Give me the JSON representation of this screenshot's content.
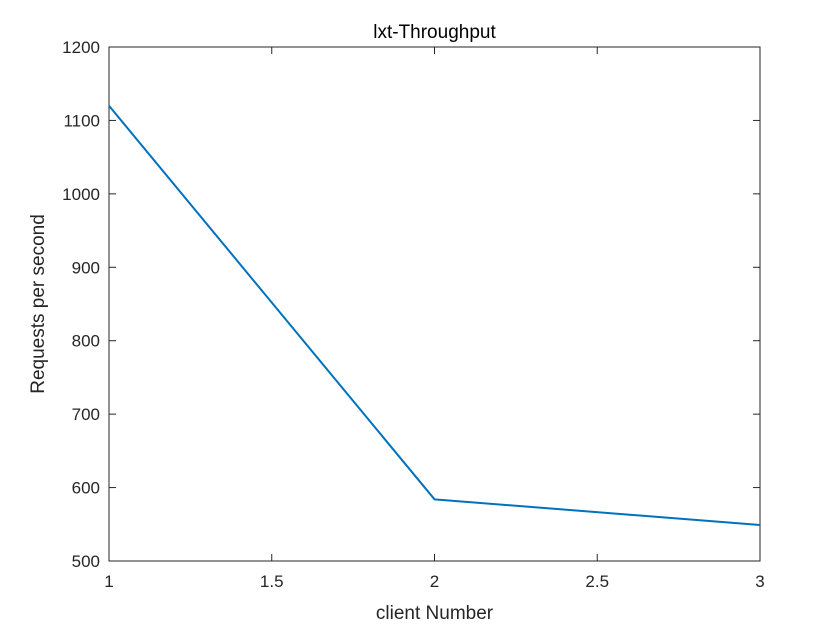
{
  "chart_data": {
    "type": "line",
    "title": "lxt-Throughput",
    "xlabel": "client Number",
    "ylabel": "Requests per second",
    "xlim": [
      1,
      3
    ],
    "ylim": [
      500,
      1200
    ],
    "xticks": [
      "1",
      "1.5",
      "2",
      "2.5",
      "3"
    ],
    "yticks": [
      "500",
      "600",
      "700",
      "800",
      "900",
      "1000",
      "1100",
      "1200"
    ],
    "grid": false,
    "series": [
      {
        "color": "#0072bd",
        "x": [
          1,
          2,
          3
        ],
        "y": [
          1120,
          584,
          549
        ]
      }
    ]
  }
}
